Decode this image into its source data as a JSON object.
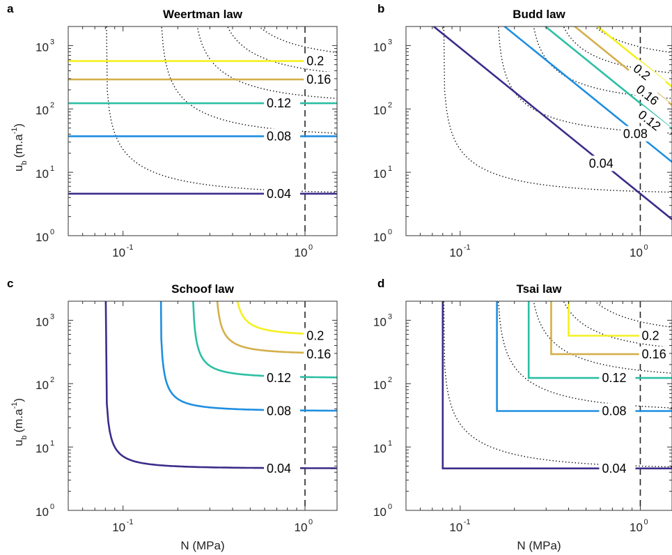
{
  "chart_data": [
    {
      "panel": "a",
      "title": "Weertman law",
      "type": "line",
      "xscale": "log",
      "yscale": "log",
      "xlim": [
        0.05,
        1.5
      ],
      "ylim": [
        1,
        2000
      ],
      "xticks": [
        {
          "base": "10",
          "exp": "-1",
          "value": 0.1
        },
        {
          "base": "10",
          "exp": "0",
          "value": 1
        }
      ],
      "yticks": [
        {
          "base": "10",
          "exp": "0",
          "value": 1
        },
        {
          "base": "10",
          "exp": "1",
          "value": 10
        },
        {
          "base": "10",
          "exp": "2",
          "value": 100
        },
        {
          "base": "10",
          "exp": "3",
          "value": 1000
        }
      ],
      "xlabel": "",
      "ylabel": {
        "main": "u",
        "sub": "b",
        "unit": "(m.a",
        "exp": "-1",
        "close": ")"
      },
      "reference_line_N": 1,
      "contours": [
        {
          "level": "0.04",
          "color": "#3b2c8a",
          "ub": 4.6
        },
        {
          "level": "0.08",
          "color": "#1e8ee0",
          "ub": 37
        },
        {
          "level": "0.12",
          "color": "#2bbfa4",
          "ub": 123
        },
        {
          "level": "0.16",
          "color": "#d4af4b",
          "ub": 292
        },
        {
          "level": "0.2",
          "color": "#f4f01e",
          "ub": 570
        }
      ],
      "dotted_asymptotes_N": [
        0.08,
        0.16,
        0.24,
        0.32,
        0.4
      ]
    },
    {
      "panel": "b",
      "title": "Budd law",
      "type": "line",
      "xscale": "log",
      "yscale": "log",
      "xlim": [
        0.05,
        1.5
      ],
      "ylim": [
        1,
        2000
      ],
      "xticks": [
        {
          "base": "10",
          "exp": "-1",
          "value": 0.1
        },
        {
          "base": "10",
          "exp": "0",
          "value": 1
        }
      ],
      "yticks": [
        {
          "base": "10",
          "exp": "0",
          "value": 1
        },
        {
          "base": "10",
          "exp": "1",
          "value": 10
        },
        {
          "base": "10",
          "exp": "2",
          "value": 100
        },
        {
          "base": "10",
          "exp": "3",
          "value": 1000
        }
      ],
      "xlabel": "",
      "ylabel": {
        "main": "",
        "sub": "",
        "unit": "",
        "exp": "",
        "close": ""
      },
      "reference_line_N": 1,
      "contours": [
        {
          "level": "0.04",
          "color": "#3b2c8a",
          "ub": 4.6
        },
        {
          "level": "0.08",
          "color": "#1e8ee0",
          "ub": 37
        },
        {
          "level": "0.12",
          "color": "#2bbfa4",
          "ub": 123
        },
        {
          "level": "0.16",
          "color": "#d4af4b",
          "ub": 292
        },
        {
          "level": "0.2",
          "color": "#f4f01e",
          "ub": 570
        }
      ],
      "dotted_asymptotes_N": [
        0.08,
        0.16,
        0.24,
        0.32,
        0.4
      ]
    },
    {
      "panel": "c",
      "title": "Schoof law",
      "type": "line",
      "xscale": "log",
      "yscale": "log",
      "xlim": [
        0.05,
        1.5
      ],
      "ylim": [
        1,
        2000
      ],
      "xticks": [
        {
          "base": "10",
          "exp": "-1",
          "value": 0.1
        },
        {
          "base": "10",
          "exp": "0",
          "value": 1
        }
      ],
      "yticks": [
        {
          "base": "10",
          "exp": "0",
          "value": 1
        },
        {
          "base": "10",
          "exp": "1",
          "value": 10
        },
        {
          "base": "10",
          "exp": "2",
          "value": 100
        },
        {
          "base": "10",
          "exp": "3",
          "value": 1000
        }
      ],
      "xlabel": "N (MPa)",
      "ylabel": {
        "main": "u",
        "sub": "b",
        "unit": "(m.a",
        "exp": "-1",
        "close": ")"
      },
      "reference_line_N": 1,
      "contours": [
        {
          "level": "0.04",
          "color": "#3b2c8a",
          "ub": 4.6,
          "N_asymptote": 0.08
        },
        {
          "level": "0.08",
          "color": "#1e8ee0",
          "ub": 37,
          "N_asymptote": 0.16
        },
        {
          "level": "0.12",
          "color": "#2bbfa4",
          "ub": 123,
          "N_asymptote": 0.24
        },
        {
          "level": "0.16",
          "color": "#d4af4b",
          "ub": 292,
          "N_asymptote": 0.32
        },
        {
          "level": "0.2",
          "color": "#f4f01e",
          "ub": 570,
          "N_asymptote": 0.4
        }
      ]
    },
    {
      "panel": "d",
      "title": "Tsai law",
      "type": "line",
      "xscale": "log",
      "yscale": "log",
      "xlim": [
        0.05,
        1.5
      ],
      "ylim": [
        1,
        2000
      ],
      "xticks": [
        {
          "base": "10",
          "exp": "-1",
          "value": 0.1
        },
        {
          "base": "10",
          "exp": "0",
          "value": 1
        }
      ],
      "yticks": [
        {
          "base": "10",
          "exp": "0",
          "value": 1
        },
        {
          "base": "10",
          "exp": "1",
          "value": 10
        },
        {
          "base": "10",
          "exp": "2",
          "value": 100
        },
        {
          "base": "10",
          "exp": "3",
          "value": 1000
        }
      ],
      "xlabel": "N (MPa)",
      "ylabel": {
        "main": "",
        "sub": "",
        "unit": "",
        "exp": "",
        "close": ""
      },
      "reference_line_N": 1,
      "contours": [
        {
          "level": "0.04",
          "color": "#3b2c8a",
          "ub": 4.6,
          "N_corner": 0.08
        },
        {
          "level": "0.08",
          "color": "#1e8ee0",
          "ub": 37,
          "N_corner": 0.16
        },
        {
          "level": "0.12",
          "color": "#2bbfa4",
          "ub": 123,
          "N_corner": 0.24
        },
        {
          "level": "0.16",
          "color": "#d4af4b",
          "ub": 292,
          "N_corner": 0.32
        },
        {
          "level": "0.2",
          "color": "#f4f01e",
          "ub": 570,
          "N_corner": 0.4
        }
      ],
      "dotted_asymptotes_N": [
        0.08,
        0.16,
        0.24,
        0.32,
        0.4
      ]
    }
  ]
}
